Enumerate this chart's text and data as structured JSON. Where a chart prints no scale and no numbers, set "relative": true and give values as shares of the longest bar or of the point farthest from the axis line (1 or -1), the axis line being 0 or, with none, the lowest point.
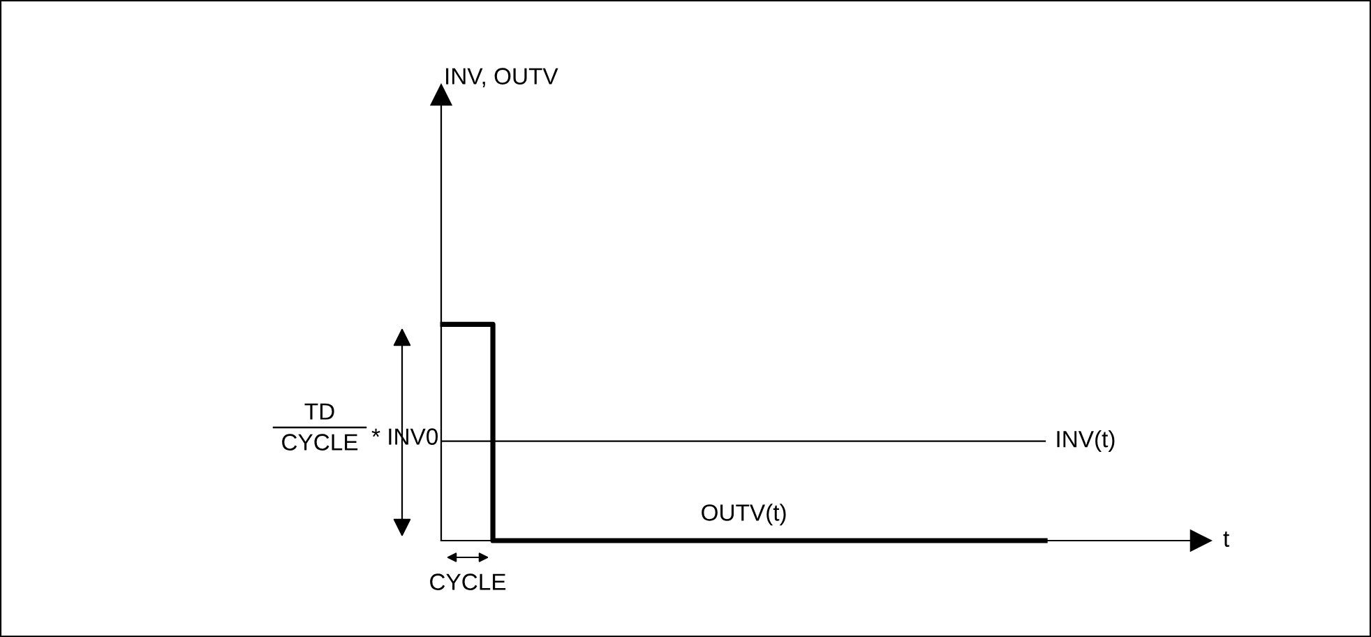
{
  "chart_data": {
    "type": "step",
    "relative": true,
    "categories": [
      null,
      null,
      null,
      null,
      null,
      null,
      null,
      null,
      null,
      null,
      null,
      null,
      null
    ],
    "series": [
      {
        "name": "INV(t)",
        "color": "#000000",
        "type": "line",
        "values": [
          0.46,
          0.46,
          0.46,
          0.46,
          0.46,
          0.46,
          0.46,
          0.46,
          0.46,
          0.46,
          0.46,
          0.46,
          0.46
        ]
      },
      {
        "name": "OUTV(t)",
        "color": "#000000",
        "values": [
          1,
          0,
          0,
          0,
          0,
          0,
          0,
          0,
          0,
          0,
          0,
          0,
          0
        ]
      }
    ],
    "annotations": [
      "INV, OUTV",
      "TD",
      "CYCLE",
      "* INV0",
      "CYCLE",
      "t"
    ],
    "grid": false,
    "legend": false,
    "marker": "none",
    "line_style": "solid"
  }
}
